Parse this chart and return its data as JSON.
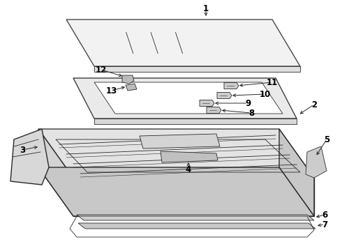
{
  "bg_color": "#ffffff",
  "line_color": "#2a2a2a",
  "fig_width": 4.9,
  "fig_height": 3.6,
  "dpi": 100,
  "lw_main": 1.0,
  "lw_thin": 0.6,
  "lw_detail": 0.4
}
